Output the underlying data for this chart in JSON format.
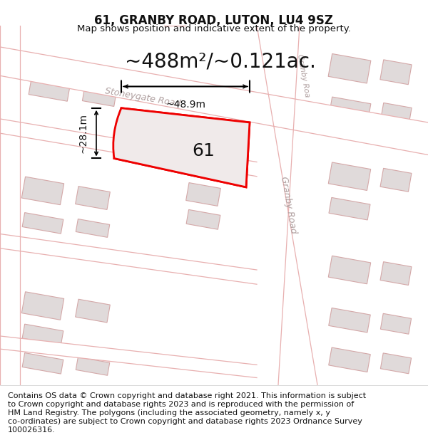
{
  "title": "61, GRANBY ROAD, LUTON, LU4 9SZ",
  "subtitle": "Map shows position and indicative extent of the property.",
  "area_text": "~488m²/~0.121ac.",
  "label_number": "61",
  "dim_width": "~48.9m",
  "dim_height": "~28.1m",
  "footer_lines": [
    "Contains OS data © Crown copyright and database right 2021. This information is subject",
    "to Crown copyright and database rights 2023 and is reproduced with the permission of",
    "HM Land Registry. The polygons (including the associated geometry, namely x, y",
    "co-ordinates) are subject to Crown copyright and database rights 2023 Ordnance Survey",
    "100026316."
  ],
  "map_bg": "#ffffff",
  "road_edge_color": "#e8b0b0",
  "road_fill": "#ffffff",
  "building_fill": "#e0dada",
  "building_edge": "#d4a8a8",
  "plot_fill": "#f0eaea",
  "plot_stroke": "#ee0000",
  "title_fontsize": 12,
  "subtitle_fontsize": 9.5,
  "area_fontsize": 20,
  "label_fontsize": 18,
  "dim_fontsize": 10,
  "footer_fontsize": 8,
  "road_label_color": "#b0a0a0",
  "road_label_fontsize": 9
}
